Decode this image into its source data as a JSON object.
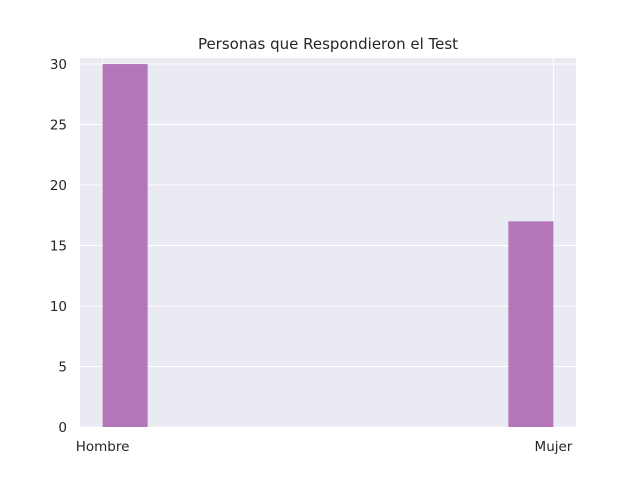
{
  "chart_data": {
    "type": "bar",
    "title": "Personas que Respondieron el Test",
    "xlabel": "",
    "ylabel": "",
    "x_ticks": [
      "Hombre",
      "Mujer"
    ],
    "bins": [
      {
        "category": "Hombre",
        "value": 30
      },
      {
        "category": "Mujer",
        "value": 17
      }
    ],
    "ylim": [
      0,
      30.5
    ],
    "y_ticks": [
      0,
      5,
      10,
      15,
      20,
      25,
      30
    ],
    "grid": true,
    "legend": "none",
    "colors": {
      "bar": "#b376b9",
      "plot_background": "#eaeaf2",
      "grid": "#ffffff",
      "text": "#262626"
    }
  }
}
